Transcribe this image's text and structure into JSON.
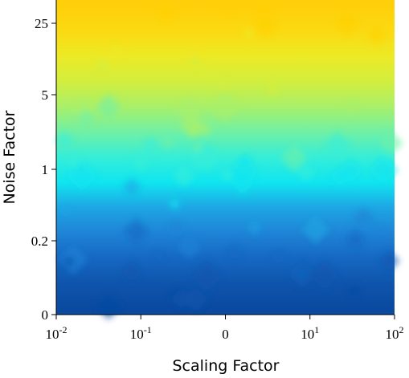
{
  "chart_data": {
    "type": "heatmap",
    "xlabel": "Scaling Factor",
    "ylabel": "Noise Factor",
    "x_ticks": [
      {
        "base": "10",
        "exp": "-2"
      },
      {
        "base": "10",
        "exp": "-1"
      },
      {
        "base": "0",
        "exp": ""
      },
      {
        "base": "10",
        "exp": "1"
      },
      {
        "base": "10",
        "exp": "2"
      }
    ],
    "y_ticks": [
      "0",
      "0.2",
      "1",
      "5",
      "25"
    ],
    "colormap": [
      "#0d47a8",
      "#1a6fd0",
      "#1fa0e2",
      "#12e8ee",
      "#5ef0b0",
      "#b5f060",
      "#e8ee2a",
      "#ffd10a"
    ],
    "rows": [
      {
        "level": 0.02,
        "color": "#0a4aa0"
      },
      {
        "level": 0.1,
        "color": "#0f55ad"
      },
      {
        "level": 0.18,
        "color": "#1668c2"
      },
      {
        "level": 0.26,
        "color": "#1f84d6"
      },
      {
        "level": 0.34,
        "color": "#1ea6e4"
      },
      {
        "level": 0.42,
        "color": "#10e5f0"
      },
      {
        "level": 0.5,
        "color": "#35eed8"
      },
      {
        "level": 0.58,
        "color": "#70f0a6"
      },
      {
        "level": 0.66,
        "color": "#a8f06a"
      },
      {
        "level": 0.74,
        "color": "#d2ee3e"
      },
      {
        "level": 0.82,
        "color": "#ecea26"
      },
      {
        "level": 0.9,
        "color": "#fbda12"
      },
      {
        "level": 0.98,
        "color": "#ffd00a"
      }
    ]
  }
}
